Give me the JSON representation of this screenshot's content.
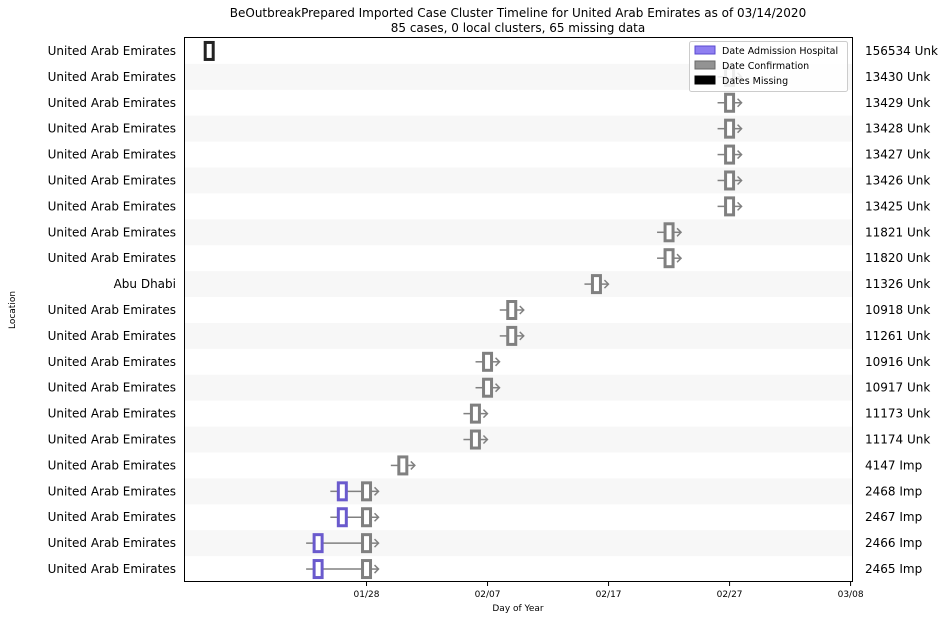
{
  "chart_data": {
    "type": "timeline",
    "title": "BeOutbreakPrepared Imported Case Cluster Timeline for United Arab Emirates as of 03/14/2020",
    "subtitle": "85 cases, 0 local clusters, 65 missing data",
    "xlabel": "Day of Year",
    "ylabel": "Location",
    "x_ticks": [
      {
        "label": "01/28",
        "day": 28
      },
      {
        "label": "02/07",
        "day": 38
      },
      {
        "label": "02/17",
        "day": 48
      },
      {
        "label": "02/27",
        "day": 58
      },
      {
        "label": "03/08",
        "day": 68
      }
    ],
    "xlim": [
      13,
      68.2
    ],
    "legend": {
      "position": "top-right",
      "entries": [
        {
          "label": "Date Admission Hospital",
          "color": "#7b68ee",
          "edge": "#5a4ad0"
        },
        {
          "label": "Date Confirmation",
          "color": "#808080",
          "edge": "#6a6a6a"
        },
        {
          "label": "Dates Missing",
          "color": "#000000",
          "edge": "#000000"
        }
      ]
    },
    "colors": {
      "admission": "#6a5acd",
      "confirmation": "#808080",
      "missing": "#222222",
      "band": "#f7f7f7"
    },
    "rows": [
      {
        "location": "United Arab Emirates",
        "case_label": "156534 Unk",
        "admission": null,
        "confirmation": null,
        "missing": 15
      },
      {
        "location": "United Arab Emirates",
        "case_label": "13430 Unk",
        "admission": null,
        "confirmation": 58,
        "missing": null
      },
      {
        "location": "United Arab Emirates",
        "case_label": "13429 Unk",
        "admission": null,
        "confirmation": 58,
        "missing": null
      },
      {
        "location": "United Arab Emirates",
        "case_label": "13428 Unk",
        "admission": null,
        "confirmation": 58,
        "missing": null
      },
      {
        "location": "United Arab Emirates",
        "case_label": "13427 Unk",
        "admission": null,
        "confirmation": 58,
        "missing": null
      },
      {
        "location": "United Arab Emirates",
        "case_label": "13426 Unk",
        "admission": null,
        "confirmation": 58,
        "missing": null
      },
      {
        "location": "United Arab Emirates",
        "case_label": "13425 Unk",
        "admission": null,
        "confirmation": 58,
        "missing": null
      },
      {
        "location": "United Arab Emirates",
        "case_label": "11821 Unk",
        "admission": null,
        "confirmation": 53,
        "missing": null
      },
      {
        "location": "United Arab Emirates",
        "case_label": "11820 Unk",
        "admission": null,
        "confirmation": 53,
        "missing": null
      },
      {
        "location": "Abu Dhabi",
        "case_label": "11326 Unk",
        "admission": null,
        "confirmation": 47,
        "missing": null
      },
      {
        "location": "United Arab Emirates",
        "case_label": "10918 Unk",
        "admission": null,
        "confirmation": 40,
        "missing": null
      },
      {
        "location": "United Arab Emirates",
        "case_label": "11261 Unk",
        "admission": null,
        "confirmation": 40,
        "missing": null
      },
      {
        "location": "United Arab Emirates",
        "case_label": "10916 Unk",
        "admission": null,
        "confirmation": 38,
        "missing": null
      },
      {
        "location": "United Arab Emirates",
        "case_label": "10917 Unk",
        "admission": null,
        "confirmation": 38,
        "missing": null
      },
      {
        "location": "United Arab Emirates",
        "case_label": "11173 Unk",
        "admission": null,
        "confirmation": 37,
        "missing": null
      },
      {
        "location": "United Arab Emirates",
        "case_label": "11174 Unk",
        "admission": null,
        "confirmation": 37,
        "missing": null
      },
      {
        "location": "United Arab Emirates",
        "case_label": "4147 Imp",
        "admission": null,
        "confirmation": 31,
        "missing": null
      },
      {
        "location": "United Arab Emirates",
        "case_label": "2468 Imp",
        "admission": 26,
        "confirmation": 28,
        "missing": null
      },
      {
        "location": "United Arab Emirates",
        "case_label": "2467 Imp",
        "admission": 26,
        "confirmation": 28,
        "missing": null
      },
      {
        "location": "United Arab Emirates",
        "case_label": "2466 Imp",
        "admission": 24,
        "confirmation": 28,
        "missing": null
      },
      {
        "location": "United Arab Emirates",
        "case_label": "2465 Imp",
        "admission": 24,
        "confirmation": 28,
        "missing": null
      }
    ]
  }
}
